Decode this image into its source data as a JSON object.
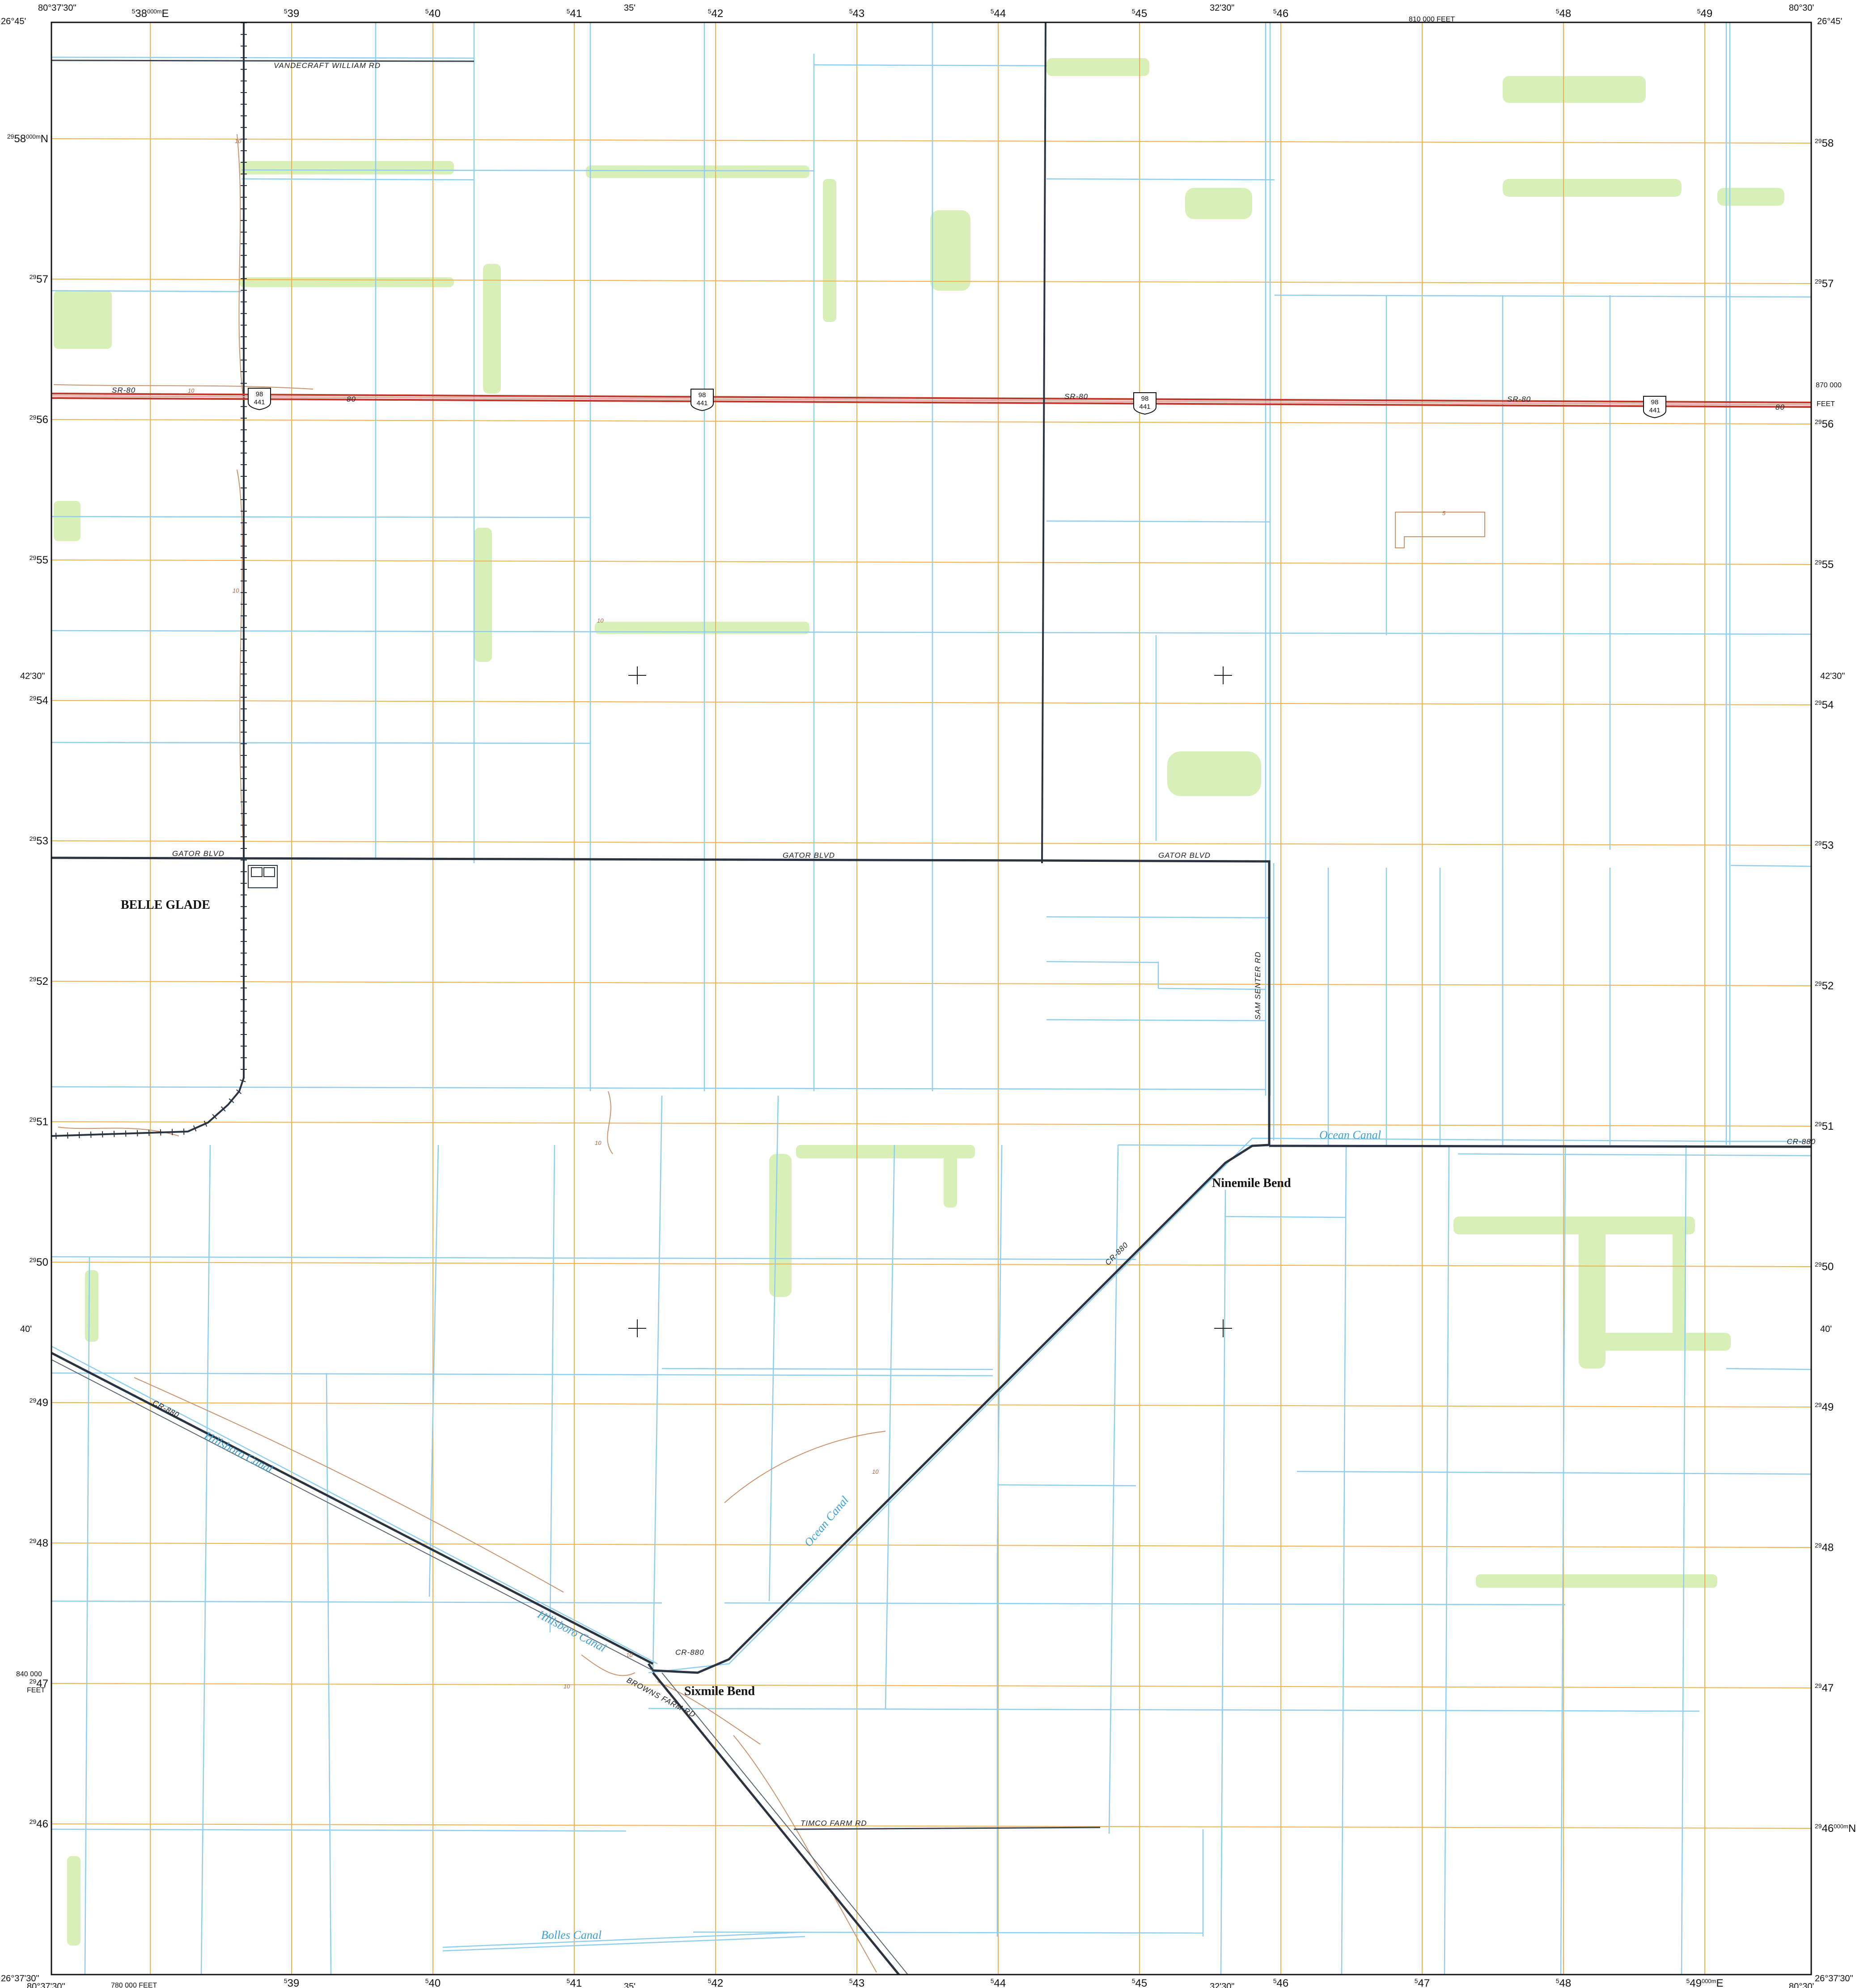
{
  "colors": {
    "grid": "#f0a028",
    "canal": "#78c4ec",
    "road": "#2a3440",
    "highway": "#c0392b",
    "vegetation": "#d5efb5",
    "contour": "#c9916c",
    "water_label": "#3ca0d6"
  },
  "collar": {
    "corner_tl_lon": "80°37'30\"",
    "corner_tl_lat": "26°45'",
    "corner_tr_lon": "80°30'",
    "corner_tr_lat": "26°45'",
    "corner_bl_lat": "26°37'30\"",
    "corner_bl_lon": "80°37'30\"",
    "corner_br_lat": "26°37'30\"",
    "corner_br_lon": "80°30'",
    "top_mid_35": "35'",
    "top_mid_3230": "32'30\"",
    "bottom_mid_35": "35'",
    "bottom_mid_3230": "32'30\"",
    "left_4230": "42'30\"",
    "left_40": "40'",
    "right_4230": "42'30\"",
    "right_40": "40'",
    "feet_810000": "810 000  FEET",
    "feet_780000": "780 000 FEET",
    "feet_870000": "870 000",
    "feet_840000": "840 000",
    "feet_word": "FEET",
    "easting_units_label": "000m",
    "easting_first_suffix": "E",
    "northing_units_label": "000m",
    "northing_first_suffix": "N",
    "northing_prefix": "29",
    "easting_prefix": "5",
    "eastings_top": [
      "38",
      "39",
      "40",
      "41",
      "42",
      "43",
      "44",
      "45",
      "46",
      "48",
      "49"
    ],
    "eastings_bottom": [
      "39",
      "40",
      "41",
      "42",
      "43",
      "44",
      "45",
      "46",
      "47",
      "48",
      "49"
    ],
    "northings_left": [
      "58",
      "57",
      "56",
      "55",
      "54",
      "53",
      "52",
      "51",
      "50",
      "49",
      "48",
      "47",
      "46"
    ],
    "northings_right": [
      "58",
      "57",
      "56",
      "55",
      "54",
      "53",
      "52",
      "51",
      "50",
      "49",
      "48",
      "47",
      "46"
    ]
  },
  "labels": {
    "road_vandecraft": "VANDECRAFT WILLIAM RD",
    "road_sr80_a": "SR-80",
    "road_sr80_b": "SR-80",
    "road_sr80_c": "SR-80",
    "road_gator_a": "GATOR BLVD",
    "road_gator_b": "GATOR BLVD",
    "road_gator_c": "GATOR BLVD",
    "road_sam_senter": "SAM SENTER RD",
    "road_cr880_a": "CR-880",
    "road_cr880_b": "CR-880",
    "road_cr880_c": "CR-880",
    "road_cr880_d": "CR-880",
    "road_browns_farm": "BROWNS FARM RD",
    "road_timco_farm": "TIMCO FARM RD",
    "road_80_a": "80",
    "road_80_b": "80",
    "canal_ocean_a": "Ocean Canal",
    "canal_ocean_b": "Ocean Canal",
    "canal_hillsboro_a": "Hillsboro Canal",
    "canal_hillsboro_b": "Hillsboro Canal",
    "canal_bolles": "Bolles Canal",
    "place_belle_glade": "BELLE GLADE",
    "place_ninemile_bend": "Ninemile Bend",
    "place_sixmile_bend": "Sixmile Bend",
    "shield_top": "98",
    "shield_bottom": "441",
    "contour_10": "10",
    "contour_5": "5"
  }
}
